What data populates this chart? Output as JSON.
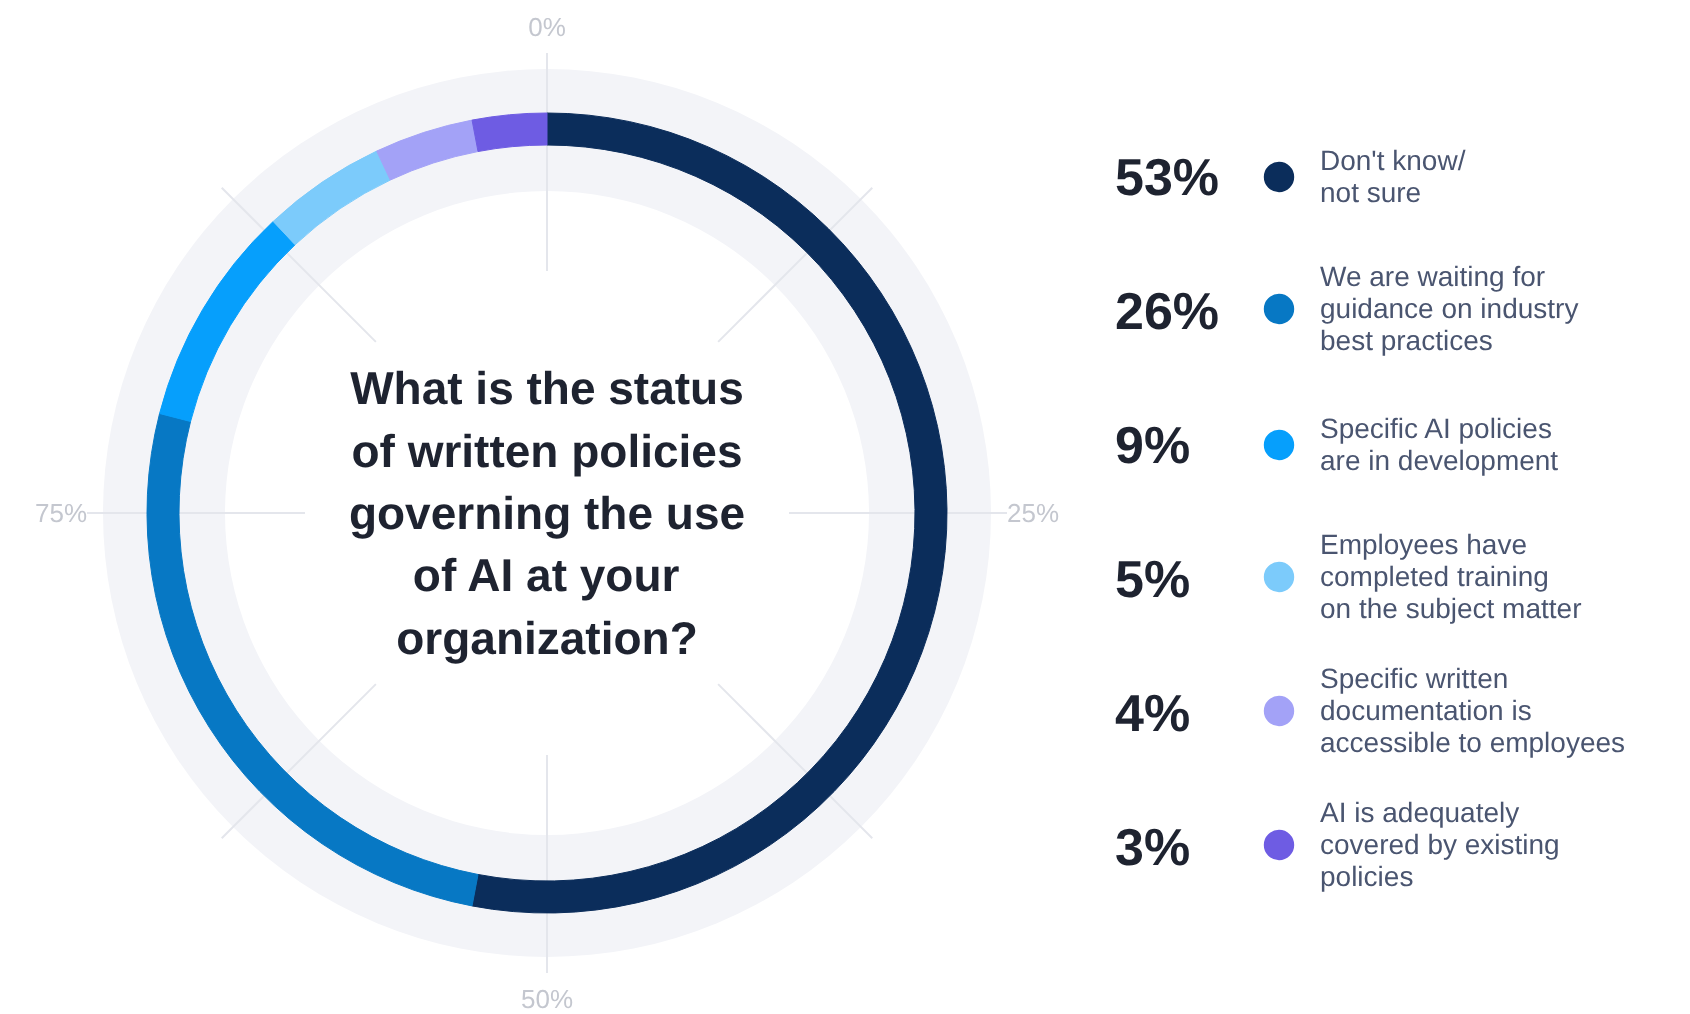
{
  "chart_data": {
    "type": "donut",
    "title": "What is the status\nof written policies\ngoverning the use\nof AI at your\norganization?",
    "categories": [
      "Don't know/\nnot sure",
      "We are waiting for\nguidance on industry\nbest practices",
      "Specific AI policies\nare in development",
      "Employees have\ncompleted training\non the subject matter",
      "Specific written\ndocumentation is\naccessible to employees",
      "AI is adequately\ncovered by existing\npolicies"
    ],
    "values": [
      53,
      26,
      9,
      5,
      4,
      3
    ],
    "value_labels": [
      "53%",
      "26%",
      "9%",
      "5%",
      "4%",
      "3%"
    ],
    "colors": [
      "#0b2d5b",
      "#0778c4",
      "#069ffc",
      "#7ccbfb",
      "#a3a2f7",
      "#6e5ce3"
    ],
    "annotations": [
      "0%",
      "25%",
      "50%",
      "75%"
    ],
    "legend": "right"
  }
}
